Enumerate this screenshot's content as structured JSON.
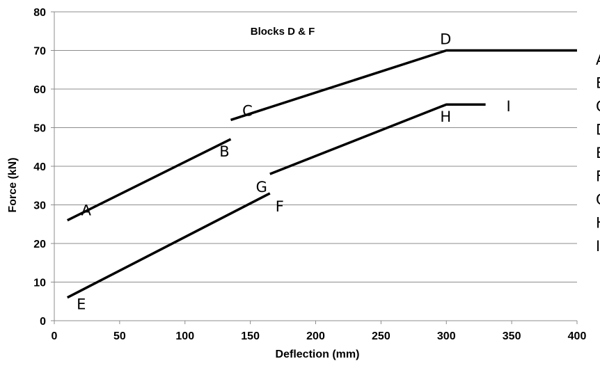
{
  "chart_data": {
    "type": "line",
    "title": "Blocks D & F",
    "xlabel": "Deflection (mm)",
    "ylabel": "Force (kN)",
    "xlim": [
      0,
      400
    ],
    "ylim": [
      0,
      80
    ],
    "x_ticks": [
      0,
      50,
      100,
      150,
      200,
      250,
      300,
      350,
      400
    ],
    "y_ticks": [
      0,
      10,
      20,
      30,
      40,
      50,
      60,
      70,
      80
    ],
    "grid": "horizontal",
    "line_color": "#000000",
    "series": [
      {
        "points": [
          {
            "x": 10,
            "y": 26
          },
          {
            "x": 135,
            "y": 47
          }
        ]
      },
      {
        "points": [
          {
            "x": 135,
            "y": 52
          },
          {
            "x": 300,
            "y": 70
          },
          {
            "x": 400,
            "y": 70
          }
        ]
      },
      {
        "points": [
          {
            "x": 10,
            "y": 6
          },
          {
            "x": 165,
            "y": 33
          }
        ]
      },
      {
        "points": [
          {
            "x": 165,
            "y": 38
          },
          {
            "x": 300,
            "y": 56
          },
          {
            "x": 330,
            "y": 56
          }
        ]
      }
    ],
    "point_labels": [
      {
        "text": "A",
        "x": 10,
        "y": 26
      },
      {
        "text": "B",
        "x": 135,
        "y": 47
      },
      {
        "text": "C",
        "x": 135,
        "y": 52
      },
      {
        "text": "D",
        "x": 300,
        "y": 70
      },
      {
        "text": "E",
        "x": 10,
        "y": 6
      },
      {
        "text": "F",
        "x": 165,
        "y": 33
      },
      {
        "text": "G",
        "x": 165,
        "y": 38
      },
      {
        "text": "H",
        "x": 300,
        "y": 56
      },
      {
        "text": "I",
        "x": 330,
        "y": 56
      }
    ],
    "side_letters": [
      "A",
      "B",
      "C",
      "D",
      "E",
      "F",
      "G",
      "H",
      "I"
    ]
  }
}
